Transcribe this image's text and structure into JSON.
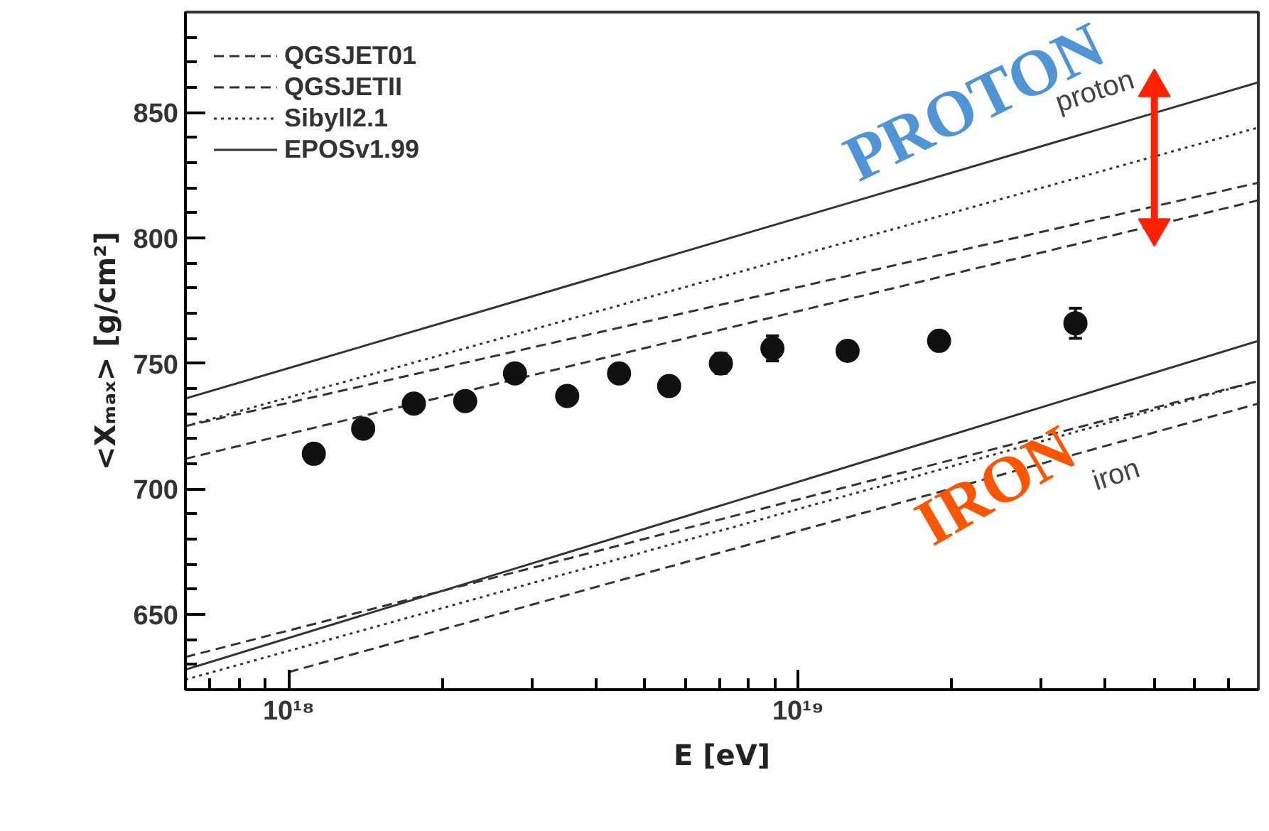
{
  "chart_data": {
    "type": "line",
    "xlabel": "E [eV]",
    "ylabel": "<Xₘₐₓ> [g/cm²]",
    "log": "x",
    "grid": false,
    "legend": "top left",
    "xlim": [
      6.27e+17,
      8e+19
    ],
    "xticks": [
      {
        "value": 7e+17,
        "label": null
      },
      {
        "value": 8e+17,
        "label": null
      },
      {
        "value": 9e+17,
        "label": null
      },
      {
        "value": 1e+18,
        "label": "10¹⁸"
      },
      {
        "value": 2e+18,
        "label": null
      },
      {
        "value": 3e+18,
        "label": null
      },
      {
        "value": 4e+18,
        "label": null
      },
      {
        "value": 5e+18,
        "label": null
      },
      {
        "value": 6e+18,
        "label": null
      },
      {
        "value": 7e+18,
        "label": null
      },
      {
        "value": 8e+18,
        "label": null
      },
      {
        "value": 9e+18,
        "label": null
      },
      {
        "value": 1e+19,
        "label": "10¹⁹"
      },
      {
        "value": 2e+19,
        "label": null
      },
      {
        "value": 3e+19,
        "label": null
      },
      {
        "value": 4e+19,
        "label": null
      },
      {
        "value": 5e+19,
        "label": null
      },
      {
        "value": 6e+19,
        "label": null
      },
      {
        "value": 7e+19,
        "label": null
      }
    ],
    "ylim": [
      620,
      890
    ],
    "yticks": [
      {
        "value": 630,
        "label": null
      },
      {
        "value": 640,
        "label": null
      },
      650,
      {
        "value": 660,
        "label": null
      },
      {
        "value": 670,
        "label": null
      },
      {
        "value": 680,
        "label": null
      },
      {
        "value": 690,
        "label": null
      },
      700,
      {
        "value": 710,
        "label": null
      },
      {
        "value": 720,
        "label": null
      },
      {
        "value": 730,
        "label": null
      },
      {
        "value": 740,
        "label": null
      },
      750,
      {
        "value": 760,
        "label": null
      },
      {
        "value": 770,
        "label": null
      },
      {
        "value": 780,
        "label": null
      },
      {
        "value": 790,
        "label": null
      },
      800,
      {
        "value": 810,
        "label": null
      },
      {
        "value": 820,
        "label": null
      },
      {
        "value": 830,
        "label": null
      },
      {
        "value": 840,
        "label": null
      },
      850,
      {
        "value": 860,
        "label": null
      },
      {
        "value": 870,
        "label": null
      },
      {
        "value": 880,
        "label": null
      }
    ],
    "series": [
      {
        "name": "QGSJET01",
        "line_style": "dashed",
        "color": "#333333",
        "x": [
          6.27e+17,
          8e+19
        ],
        "values": [
          725,
          822
        ]
      },
      {
        "name": "QGSJETII",
        "line_style": "dashed",
        "color": "#333333",
        "x": [
          6.27e+17,
          8e+19
        ],
        "values": [
          712,
          815
        ]
      },
      {
        "name": "Sibyll2.1",
        "line_style": "dotted",
        "color": "#333333",
        "x": [
          6.27e+17,
          8e+19
        ],
        "values": [
          725,
          844
        ]
      },
      {
        "name": "EPOSv1.99",
        "line_style": "solid",
        "color": "#333333",
        "x": [
          6.27e+17,
          8e+19
        ],
        "values": [
          736,
          862
        ]
      },
      {
        "line_style": "dashed",
        "color": "#333333",
        "x": [
          6.27e+17,
          8e+19
        ],
        "values": [
          633,
          743
        ]
      },
      {
        "line_style": "dashed",
        "color": "#333333",
        "x": [
          1e+18,
          8e+19
        ],
        "values": [
          627,
          734
        ]
      },
      {
        "line_style": "dotted",
        "color": "#333333",
        "x": [
          6.27e+17,
          8e+19
        ],
        "values": [
          624,
          743
        ]
      },
      {
        "line_style": "solid",
        "color": "#333333",
        "x": [
          6.27e+17,
          8e+19
        ],
        "values": [
          628,
          759
        ]
      },
      {
        "type": "scatter",
        "marker": "circle",
        "color": "#111111",
        "x": [
          1.12e+18,
          1.4e+18,
          1.76e+18,
          2.22e+18,
          2.78e+18,
          3.52e+18,
          4.45e+18,
          5.58e+18,
          7.05e+18,
          8.9e+18,
          1.25e+19,
          1.89e+19,
          3.5e+19
        ],
        "values": [
          714,
          724,
          734,
          735,
          746,
          737,
          746,
          741,
          750,
          756,
          755,
          759,
          766
        ],
        "errors": [
          null,
          null,
          null,
          null,
          null,
          null,
          null,
          null,
          4,
          5,
          null,
          3,
          6
        ]
      },
      {
        "marker": "triangle",
        "color": "#ff2200",
        "x": [
          5e+19,
          5e+19
        ],
        "values": [
          804,
          860
        ]
      }
    ],
    "annotations": [
      "PROTON",
      "IRON",
      "proton",
      "iron"
    ]
  }
}
